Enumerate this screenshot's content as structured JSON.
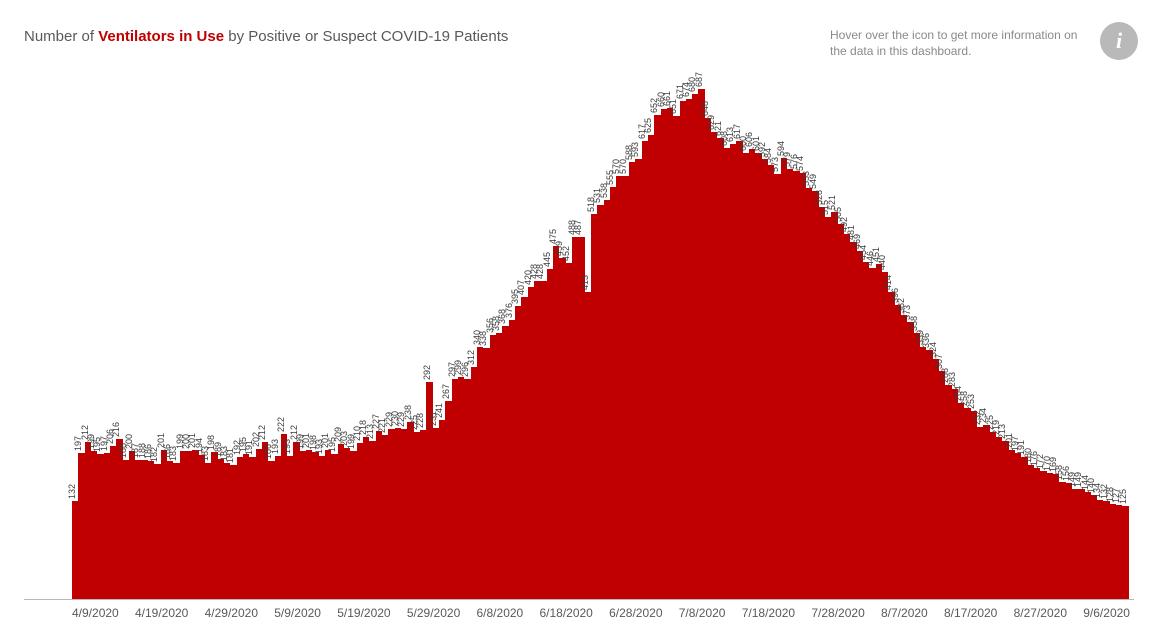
{
  "title_prefix": "Number of ",
  "title_highlight": "Ventilators in Use",
  "title_suffix": " by Positive or Suspect COVID-19 Patients",
  "hint_text": "Hover over the icon to get more information on the data in this dashboard.",
  "info_glyph": "i",
  "chart": {
    "type": "bar",
    "bar_color": "#c00000",
    "background_color": "#ffffff",
    "axis_color": "#b9b9b9",
    "label_fontsize": 9,
    "label_color": "#3a3a3a",
    "x_tick_fontsize": 12,
    "x_tick_color": "#595959",
    "ylim": [
      0,
      700
    ],
    "x_ticks": [
      "4/9/2020",
      "4/19/2020",
      "4/29/2020",
      "5/9/2020",
      "5/19/2020",
      "5/29/2020",
      "6/8/2020",
      "6/18/2020",
      "6/28/2020",
      "7/8/2020",
      "7/18/2020",
      "7/28/2020",
      "8/7/2020",
      "8/17/2020",
      "8/27/2020",
      "9/6/2020"
    ],
    "values": [
      132,
      197,
      212,
      199,
      195,
      197,
      206,
      216,
      188,
      200,
      187,
      188,
      186,
      182,
      201,
      186,
      183,
      199,
      200,
      201,
      194,
      183,
      198,
      189,
      183,
      181,
      192,
      195,
      191,
      202,
      212,
      186,
      193,
      222,
      193,
      212,
      199,
      201,
      198,
      193,
      201,
      195,
      209,
      203,
      199,
      210,
      218,
      213,
      227,
      221,
      229,
      230,
      229,
      238,
      225,
      228,
      292,
      231,
      241,
      267,
      297,
      299,
      296,
      312,
      340,
      338,
      356,
      358,
      368,
      376,
      395,
      407,
      420,
      428,
      428,
      445,
      475,
      459,
      452,
      488,
      487,
      413,
      518,
      531,
      538,
      555,
      570,
      570,
      588,
      593,
      617,
      625,
      652,
      660,
      661,
      651,
      671,
      674,
      680,
      687,
      648,
      629,
      621,
      608,
      613,
      617,
      600,
      606,
      601,
      592,
      584,
      573,
      594,
      579,
      576,
      574,
      553,
      549,
      528,
      515,
      521,
      505,
      492,
      481,
      469,
      454,
      446,
      451,
      440,
      414,
      396,
      382,
      373,
      358,
      339,
      336,
      324,
      307,
      288,
      283,
      264,
      258,
      253,
      232,
      234,
      225,
      219,
      213,
      201,
      197,
      191,
      180,
      176,
      172,
      170,
      169,
      158,
      156,
      149,
      149,
      144,
      140,
      134,
      132,
      128,
      127,
      125
    ]
  }
}
